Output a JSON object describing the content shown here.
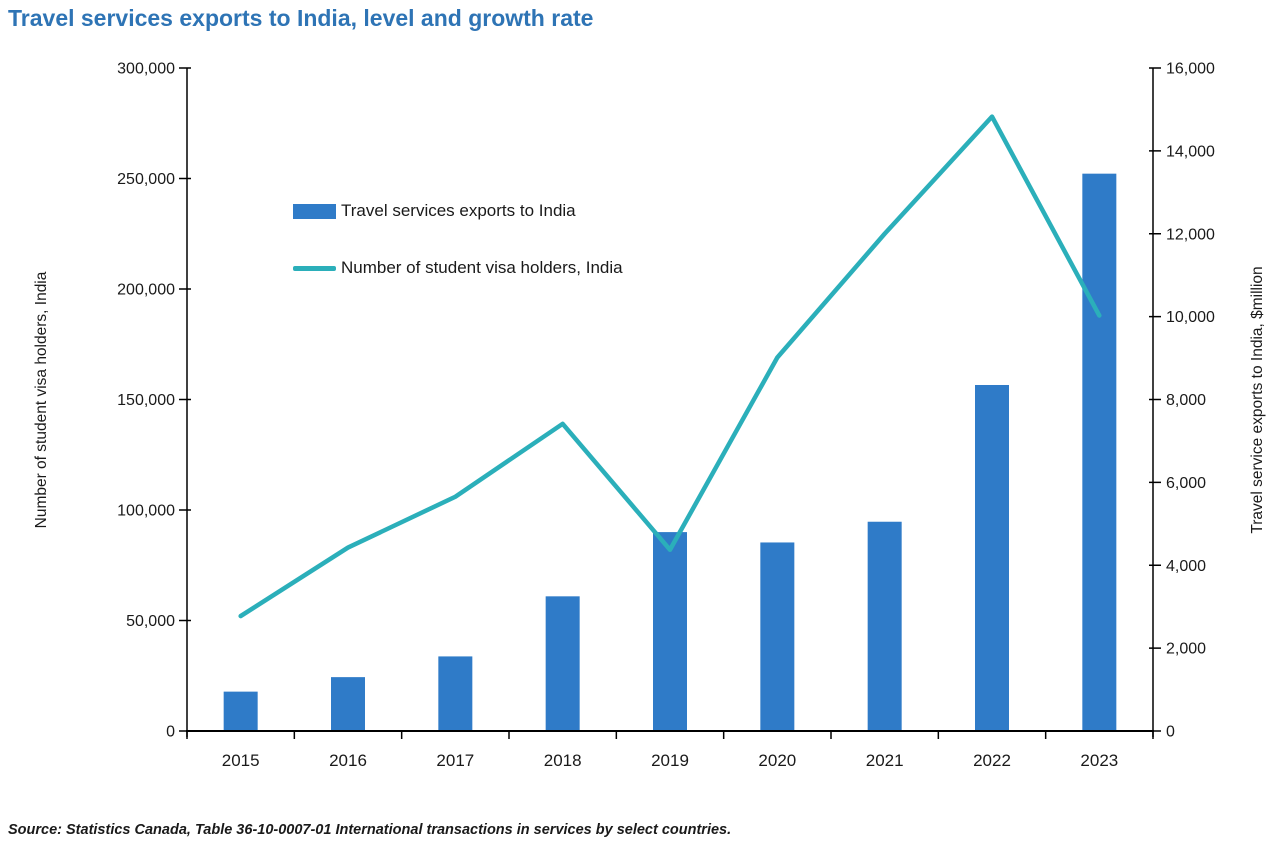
{
  "title": "Travel services exports to India, level and growth rate",
  "source_note": "Source: Statistics Canada, Table 36-10-0007-01 International transactions in services by select countries.",
  "colors": {
    "title": "#2E74B5",
    "bar": "#2F7BC8",
    "line": "#2BAFBA",
    "axis": "#000000",
    "text": "#1A1A1A"
  },
  "chart_data": {
    "type": "bar",
    "subtype": "combo bar+line, dual axis",
    "categories": [
      "2015",
      "2016",
      "2017",
      "2018",
      "2019",
      "2020",
      "2021",
      "2022",
      "2023"
    ],
    "series": [
      {
        "name": "Travel services exports to India",
        "type": "bar",
        "axis": "right",
        "values": [
          950,
          1300,
          1800,
          3250,
          4800,
          4550,
          5050,
          8350,
          13450
        ]
      },
      {
        "name": "Number of student visa holders, India",
        "type": "line",
        "axis": "left",
        "values": [
          52000,
          83000,
          106000,
          139000,
          82000,
          169000,
          225000,
          278000,
          188000
        ]
      }
    ],
    "left_axis": {
      "label": "Number of student visa holders, India",
      "min": 0,
      "max": 300000,
      "step": 50000
    },
    "right_axis": {
      "label": "Travel service exports to India, $million",
      "min": 0,
      "max": 16000,
      "step": 2000
    },
    "xlabel": "",
    "grid": false,
    "legend_position": "inside upper-left"
  }
}
